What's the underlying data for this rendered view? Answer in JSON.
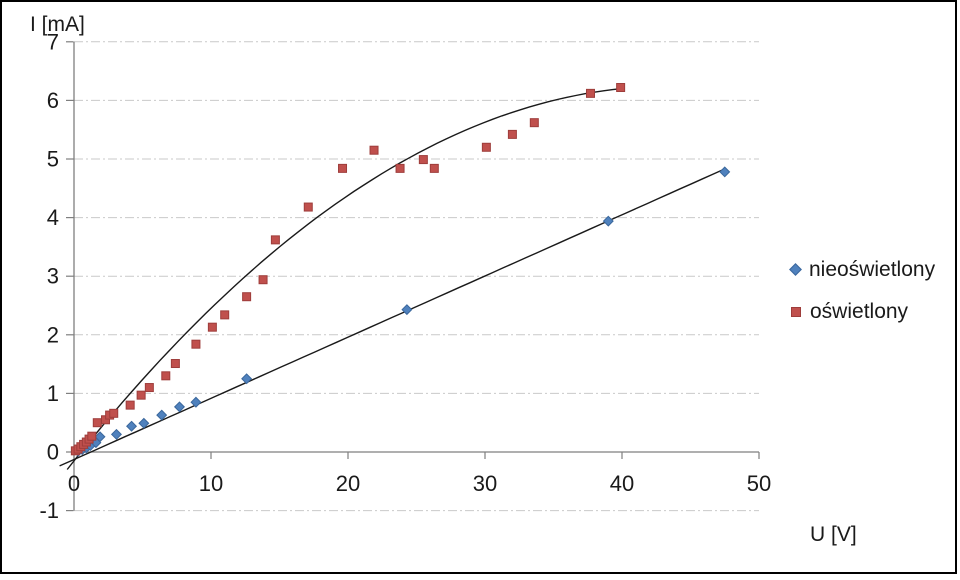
{
  "chart_data": {
    "type": "scatter",
    "title": "",
    "xlabel": "U [V]",
    "ylabel": "I [mA]",
    "xlim": [
      0,
      50
    ],
    "ylim": [
      -1,
      7
    ],
    "x_ticks": [
      0,
      10,
      20,
      30,
      40,
      50
    ],
    "y_ticks": [
      -1,
      0,
      1,
      2,
      3,
      4,
      5,
      6,
      7
    ],
    "grid": "horizontal-dash-dot",
    "legend_position": "right-middle",
    "colors": {
      "series_dark": "#4F81BD",
      "series_light": "#C0504D",
      "gridline": "#C9C9C9",
      "axis": "#7F7F7F",
      "trendline": "#1A1A1A",
      "text": "#1A1A1A"
    },
    "series": [
      {
        "name": "nieoświetlony",
        "marker": "diamond",
        "color": "#4F81BD",
        "edge_color": "#3A679C",
        "points": [
          [
            0.3,
            0.01
          ],
          [
            0.6,
            0.04
          ],
          [
            0.9,
            0.07
          ],
          [
            1.2,
            0.11
          ],
          [
            1.6,
            0.16
          ],
          [
            1.9,
            0.26
          ],
          [
            3.1,
            0.3
          ],
          [
            4.2,
            0.44
          ],
          [
            5.1,
            0.49
          ],
          [
            6.4,
            0.63
          ],
          [
            7.7,
            0.77
          ],
          [
            8.9,
            0.85
          ],
          [
            12.6,
            1.25
          ],
          [
            24.3,
            2.43
          ],
          [
            39.0,
            3.94
          ],
          [
            47.5,
            4.78
          ]
        ],
        "trendline": {
          "type": "linear",
          "slope": 0.1044,
          "intercept": -0.128,
          "u_range": [
            -1.05,
            47.5
          ]
        }
      },
      {
        "name": "oświetlony",
        "marker": "square",
        "color": "#C0504D",
        "edge_color": "#9E3D3B",
        "points": [
          [
            0.1,
            0.02
          ],
          [
            0.3,
            0.05
          ],
          [
            0.5,
            0.09
          ],
          [
            0.7,
            0.13
          ],
          [
            0.9,
            0.17
          ],
          [
            1.1,
            0.22
          ],
          [
            1.3,
            0.27
          ],
          [
            1.7,
            0.5
          ],
          [
            2.3,
            0.55
          ],
          [
            2.6,
            0.63
          ],
          [
            2.9,
            0.66
          ],
          [
            4.1,
            0.8
          ],
          [
            4.9,
            0.97
          ],
          [
            5.5,
            1.1
          ],
          [
            6.7,
            1.3
          ],
          [
            7.4,
            1.51
          ],
          [
            8.9,
            1.84
          ],
          [
            10.1,
            2.13
          ],
          [
            11.0,
            2.34
          ],
          [
            12.6,
            2.65
          ],
          [
            13.8,
            2.94
          ],
          [
            14.7,
            3.62
          ],
          [
            17.1,
            4.18
          ],
          [
            19.6,
            4.84
          ],
          [
            21.9,
            5.15
          ],
          [
            23.8,
            4.84
          ],
          [
            25.5,
            4.99
          ],
          [
            26.3,
            4.84
          ],
          [
            30.1,
            5.2
          ],
          [
            32.0,
            5.42
          ],
          [
            33.6,
            5.62
          ],
          [
            37.7,
            6.12
          ],
          [
            39.9,
            6.22
          ]
        ],
        "trendline": {
          "type": "quadratic",
          "a": -0.00338,
          "b": 0.294,
          "c": -0.15,
          "u_range": [
            -0.5,
            40.0
          ]
        }
      }
    ]
  }
}
